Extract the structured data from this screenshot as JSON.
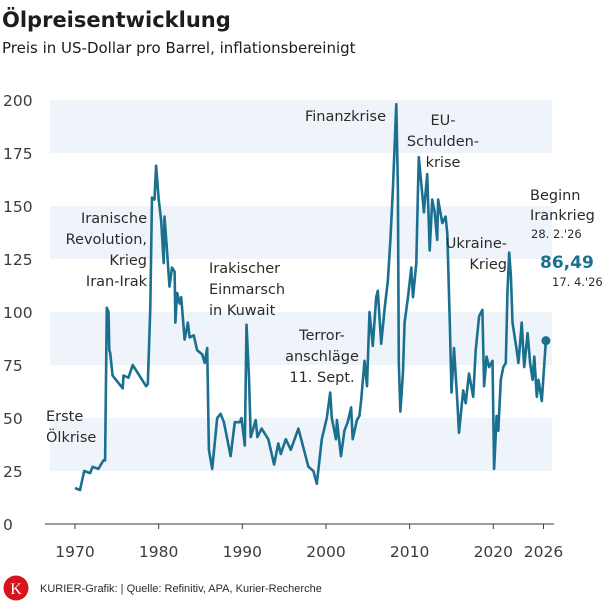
{
  "header": {
    "title": "Ölpreisentwicklung",
    "subtitle": "Preis in US-Dollar pro Barrel, inflationsbereinigt"
  },
  "colors": {
    "line": "#1b6f8f",
    "band": "#eef4fa",
    "axis": "#3c3c3b",
    "logo": "#d7141a"
  },
  "chart_data": {
    "type": "line",
    "title": "Ölpreisentwicklung",
    "subtitle": "Preis in US-Dollar pro Barrel, inflationsbereinigt",
    "xlabel": "",
    "ylabel": "",
    "xlim": [
      1970,
      2026.3
    ],
    "ylim": [
      0,
      200
    ],
    "x_ticks": [
      1970,
      1980,
      1990,
      2000,
      2010,
      2020,
      2026
    ],
    "y_ticks": [
      0,
      25,
      50,
      75,
      100,
      125,
      150,
      175,
      200
    ],
    "grid": "alternating horizontal bands",
    "legend": "none",
    "x": [
      1970.0,
      1970.6,
      1971.1,
      1971.8,
      1972.1,
      1972.8,
      1973.4,
      1973.6,
      1973.8,
      1974.0,
      1974.1,
      1974.2,
      1974.5,
      1975.7,
      1975.8,
      1976.4,
      1976.9,
      1978.5,
      1978.7,
      1979.0,
      1979.2,
      1979.5,
      1979.7,
      1980.0,
      1980.3,
      1980.6,
      1980.7,
      1981.0,
      1981.3,
      1981.6,
      1981.9,
      1982.0,
      1982.2,
      1982.5,
      1982.7,
      1983.1,
      1983.5,
      1983.7,
      1984.2,
      1984.6,
      1985.2,
      1985.5,
      1985.8,
      1986.0,
      1986.4,
      1987.0,
      1987.4,
      1987.8,
      1988.2,
      1988.6,
      1989.1,
      1989.7,
      1989.9,
      1990.3,
      1990.5,
      1990.8,
      1991.0,
      1991.6,
      1991.8,
      1992.3,
      1993.1,
      1993.8,
      1994.3,
      1994.6,
      1995.2,
      1995.8,
      1996.7,
      1997.3,
      1997.9,
      1998.5,
      1998.9,
      1999.5,
      2000.1,
      2000.5,
      2000.7,
      2001.2,
      2001.3,
      2001.8,
      2002.2,
      2002.6,
      2003.0,
      2003.2,
      2003.7,
      2004.0,
      2004.2,
      2004.6,
      2004.9,
      2005.2,
      2005.6,
      2006.0,
      2006.2,
      2006.6,
      2007.0,
      2007.4,
      2007.7,
      2008.0,
      2008.4,
      2008.6,
      2008.7,
      2008.9,
      2009.2,
      2009.4,
      2009.8,
      2010.2,
      2010.4,
      2010.8,
      2011.0,
      2011.1,
      2011.5,
      2011.7,
      2012.1,
      2012.4,
      2012.7,
      2013.0,
      2013.3,
      2013.4,
      2013.9,
      2014.3,
      2014.5,
      2014.8,
      2015.0,
      2015.3,
      2015.7,
      2015.9,
      2016.4,
      2016.7,
      2017.1,
      2017.6,
      2017.9,
      2018.3,
      2018.7,
      2018.9,
      2019.2,
      2019.5,
      2019.9,
      2020.1,
      2020.4,
      2020.6,
      2020.9,
      2021.2,
      2021.5,
      2021.7,
      2021.9,
      2022.1,
      2022.3,
      2022.8,
      2023.0,
      2023.2,
      2023.4,
      2023.7,
      2024.1,
      2024.4,
      2024.7,
      2024.9,
      2025.2,
      2025.4,
      2025.8,
      2026.0,
      2026.29
    ],
    "y": [
      17,
      16,
      25,
      24,
      27,
      26,
      30,
      30,
      102,
      100,
      82,
      81,
      70,
      64,
      70,
      69,
      75,
      65,
      66,
      102,
      154,
      153,
      169,
      153,
      143,
      123,
      145,
      129,
      112,
      121,
      119,
      95,
      109,
      104,
      107,
      87,
      95,
      88,
      89,
      82,
      80,
      76,
      83,
      35,
      26,
      50,
      52,
      48,
      40,
      32,
      48,
      48,
      50,
      37,
      94,
      69,
      41,
      49,
      41,
      45,
      40,
      28,
      38,
      33,
      40,
      35,
      45,
      36,
      27,
      25,
      19,
      40,
      50,
      62,
      50,
      40,
      49,
      32,
      44,
      48,
      55,
      40,
      49,
      51,
      58,
      77,
      65,
      100,
      84,
      107,
      110,
      85,
      101,
      115,
      134,
      158,
      198,
      158,
      76,
      53,
      71,
      95,
      107,
      121,
      107,
      123,
      158,
      173,
      156,
      147,
      165,
      129,
      153,
      147,
      134,
      153,
      142,
      145,
      137,
      95,
      62,
      83,
      58,
      43,
      63,
      57,
      71,
      60,
      82,
      98,
      101,
      65,
      79,
      74,
      77,
      26,
      51,
      44,
      68,
      74,
      76,
      110,
      128,
      117,
      95,
      82,
      76,
      85,
      95,
      74,
      90,
      76,
      68,
      79,
      60,
      68,
      58,
      70,
      86.49
    ],
    "last_point": {
      "value": "86,49",
      "date": "17. 4.'26"
    },
    "annotations": [
      {
        "id": "oelkrise",
        "lines": [
          "Erste",
          "Ölkrise"
        ]
      },
      {
        "id": "iran",
        "lines": [
          "Iranische",
          "Revolution,",
          "Krieg",
          "Iran-Irak"
        ]
      },
      {
        "id": "kuwait",
        "lines": [
          "Irakischer",
          "Einmarsch",
          "in Kuwait"
        ]
      },
      {
        "id": "terror",
        "lines": [
          "Terror-",
          "anschläge",
          "11. Sept."
        ]
      },
      {
        "id": "finanz",
        "lines": [
          "Finanzkrise"
        ]
      },
      {
        "id": "eu",
        "lines": [
          "EU-",
          "Schulden-",
          "krise"
        ]
      },
      {
        "id": "ukraine",
        "lines": [
          "Ukraine-",
          "Krieg"
        ]
      },
      {
        "id": "irankrieg",
        "lines": [
          "Beginn",
          "Irankrieg"
        ],
        "date": "28. 2.'26"
      }
    ]
  },
  "footer": {
    "logo_letter": "K",
    "credit": "KURIER-Grafik:  | Quelle: Refinitiv, APA, Kurier-Recherche"
  }
}
